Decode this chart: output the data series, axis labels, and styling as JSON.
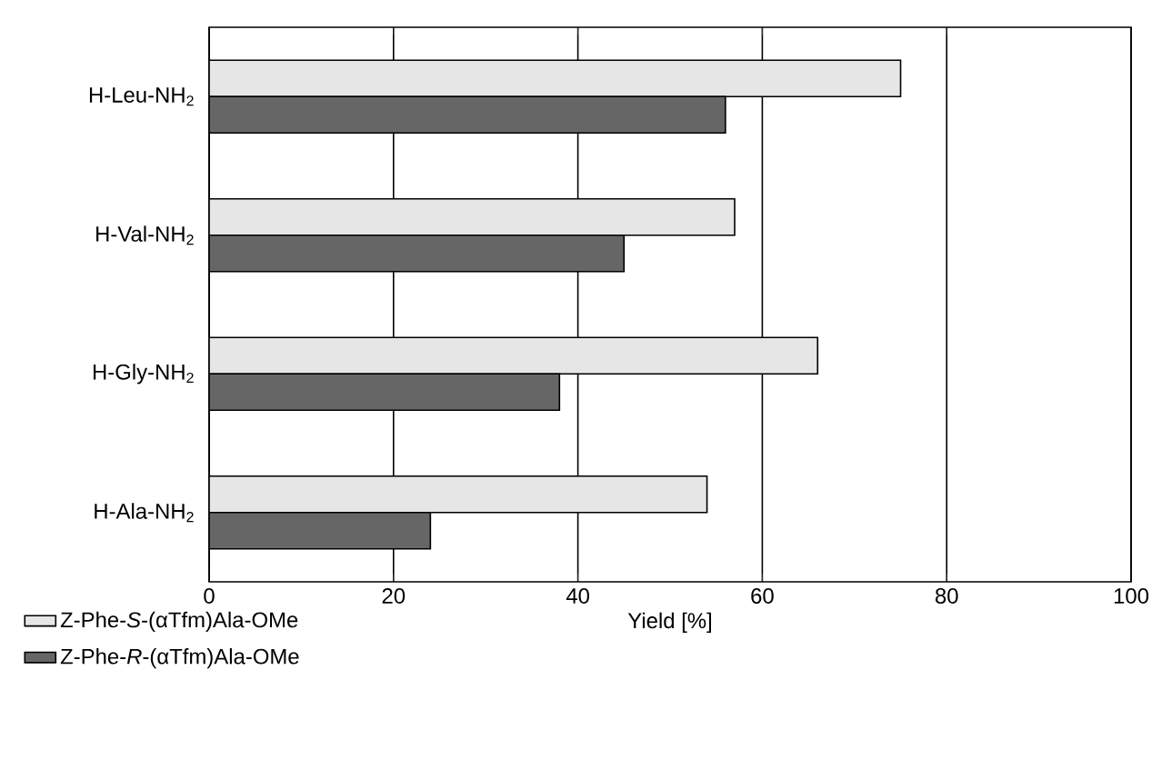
{
  "chart_data": {
    "type": "bar",
    "orientation": "horizontal",
    "xlabel": "Yield [%]",
    "categories": [
      "H-Leu-NH$_{2}$",
      "H-Val-NH$_{2}$",
      "H-Gly-NH$_{2}$",
      "H-Ala-NH$_{2}$"
    ],
    "series": [
      {
        "name": "Z-Phe-*S*-(αTfm)Ala-OMe",
        "color": "#e6e6e6",
        "values": [
          75,
          57,
          66,
          54
        ]
      },
      {
        "name": "Z-Phe-*R*-(αTfm)Ala-OMe",
        "color": "#666666",
        "values": [
          56,
          45,
          38,
          24
        ]
      }
    ],
    "xlim": [
      0,
      100
    ],
    "xticks": [
      0,
      20,
      40,
      60,
      80,
      100
    ],
    "grid": "x",
    "legend": "bottom left"
  }
}
